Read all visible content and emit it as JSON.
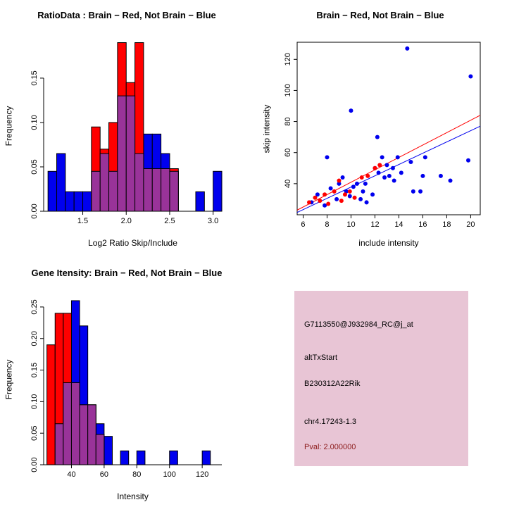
{
  "figure": {
    "background": "#FFFFFF"
  },
  "panels": {
    "info_box": {
      "bg": "#E8C5D5",
      "lines": [
        {
          "text": "G7113550@J932984_RC@j_at",
          "color": "#000000"
        },
        {
          "text": "altTxStart",
          "color": "#000000"
        },
        {
          "text": "B230312A22Rik",
          "color": "#000000"
        },
        {
          "text": "chr4.17243-1.3",
          "color": "#000000"
        },
        {
          "text": "Pval: 2.000000",
          "color": "#8B1A1A"
        }
      ]
    }
  },
  "chart_data": [
    {
      "id": "ratio-histogram",
      "type": "bar",
      "title": "RatioData : Brain − Red, Not Brain − Blue",
      "xlabel": "Log2 Ratio Skip/Include",
      "ylabel": "Frequency",
      "xlim": [
        1.05,
        3.1
      ],
      "ylim": [
        0,
        0.192
      ],
      "x_ticks": [
        1.5,
        2.0,
        2.5,
        3.0
      ],
      "x_tick_labels": [
        "1.5",
        "2.0",
        "2.5",
        "3.0"
      ],
      "y_ticks": [
        0,
        0.05,
        0.1,
        0.15
      ],
      "y_tick_labels": [
        "0.00",
        "0.05",
        "0.10",
        "0.15"
      ],
      "bin_width": 0.1,
      "grid": false,
      "legend": "none",
      "overlap_color": "#993399",
      "series": [
        {
          "name": "Not Brain (blue)",
          "color": "#0000EE",
          "start": 1.1,
          "values": [
            0.045,
            0.065,
            0.022,
            0.022,
            0.022,
            0.045,
            0.065,
            0.045,
            0.13,
            0.13,
            0.065,
            0.087,
            0.087,
            0.065,
            0.045,
            0,
            0,
            0.022,
            0,
            0.045
          ]
        },
        {
          "name": "Brain (red)",
          "color": "#FF0000",
          "start": 1.6,
          "values": [
            0.095,
            0.07,
            0.1,
            0.19,
            0.145,
            0.19,
            0.048,
            0.048,
            0.048,
            0.048
          ]
        }
      ]
    },
    {
      "id": "intensity-scatter",
      "type": "scatter",
      "title": "Brain − Red, Not Brain − Blue",
      "xlabel": "include intensity",
      "ylabel": "skip intensity",
      "xlim": [
        5.5,
        20.8
      ],
      "ylim": [
        20,
        131
      ],
      "x_ticks": [
        6,
        8,
        10,
        12,
        14,
        16,
        18,
        20
      ],
      "y_ticks": [
        40,
        60,
        80,
        100,
        120
      ],
      "grid": false,
      "legend": "none",
      "series": [
        {
          "name": "Not Brain (blue)",
          "color": "#0000EE",
          "points": [
            [
              6.7,
              28
            ],
            [
              7.2,
              33
            ],
            [
              7.8,
              26
            ],
            [
              8,
              57
            ],
            [
              8.3,
              37
            ],
            [
              8.8,
              30
            ],
            [
              9,
              40
            ],
            [
              9.3,
              44
            ],
            [
              9.6,
              35
            ],
            [
              9.9,
              32
            ],
            [
              10,
              87
            ],
            [
              10.2,
              38
            ],
            [
              10.5,
              40
            ],
            [
              10.8,
              30
            ],
            [
              11,
              35
            ],
            [
              11.2,
              40
            ],
            [
              11.3,
              28
            ],
            [
              11.8,
              33
            ],
            [
              12,
              50
            ],
            [
              12.2,
              70
            ],
            [
              12.3,
              47
            ],
            [
              12.6,
              57
            ],
            [
              12.8,
              44
            ],
            [
              13,
              52
            ],
            [
              13.2,
              45
            ],
            [
              13.5,
              50
            ],
            [
              13.6,
              42
            ],
            [
              13.9,
              57
            ],
            [
              14.2,
              47
            ],
            [
              14.7,
              127
            ],
            [
              15,
              54
            ],
            [
              15.2,
              35
            ],
            [
              15.8,
              35
            ],
            [
              16,
              45
            ],
            [
              16.2,
              57
            ],
            [
              17.5,
              45
            ],
            [
              18.3,
              42
            ],
            [
              19.8,
              55
            ],
            [
              20,
              109
            ]
          ]
        },
        {
          "name": "Brain (red)",
          "color": "#FF0000",
          "points": [
            [
              6.5,
              28
            ],
            [
              7,
              31
            ],
            [
              7.4,
              29
            ],
            [
              7.8,
              33
            ],
            [
              8.1,
              27
            ],
            [
              8.6,
              35
            ],
            [
              9,
              42
            ],
            [
              9.2,
              29
            ],
            [
              9.5,
              33
            ],
            [
              9.9,
              35
            ],
            [
              10.3,
              31
            ],
            [
              10.9,
              44
            ],
            [
              11.4,
              45
            ],
            [
              12,
              50
            ],
            [
              12.4,
              52
            ]
          ]
        }
      ],
      "lines": [
        {
          "name": "brain-fit-line",
          "color": "#FF0000",
          "x1": 5.5,
          "y1": 23,
          "x2": 20.8,
          "y2": 84
        },
        {
          "name": "notbrain-fit-line",
          "color": "#0000EE",
          "x1": 5.5,
          "y1": 21.5,
          "x2": 20.8,
          "y2": 77
        }
      ]
    },
    {
      "id": "gene-intensity-histogram",
      "type": "bar",
      "title": "Gene Itensity: Brain − Red, Not Brain − Blue",
      "xlabel": "Intensity",
      "ylabel": "Frequency",
      "xlim": [
        23,
        132
      ],
      "ylim": [
        0,
        0.27
      ],
      "x_ticks": [
        40,
        60,
        80,
        100,
        120
      ],
      "x_tick_labels": [
        "40",
        "60",
        "80",
        "100",
        "120"
      ],
      "y_ticks": [
        0,
        0.05,
        0.1,
        0.15,
        0.2,
        0.25
      ],
      "y_tick_labels": [
        "0.00",
        "0.05",
        "0.10",
        "0.15",
        "0.20",
        "0.25"
      ],
      "bin_width": 5,
      "grid": false,
      "legend": "none",
      "overlap_color": "#993399",
      "series": [
        {
          "name": "Not Brain (blue)",
          "color": "#0000EE",
          "start": 30,
          "values": [
            0.065,
            0.13,
            0.26,
            0.22,
            0.095,
            0.065,
            0.045,
            0,
            0.022,
            0,
            0.022,
            0,
            0,
            0,
            0.022,
            0,
            0,
            0,
            0.022
          ]
        },
        {
          "name": "Brain (red)",
          "color": "#FF0000",
          "start": 25,
          "values": [
            0.19,
            0.24,
            0.24,
            0.13,
            0.095,
            0.095,
            0.048
          ]
        }
      ]
    }
  ]
}
